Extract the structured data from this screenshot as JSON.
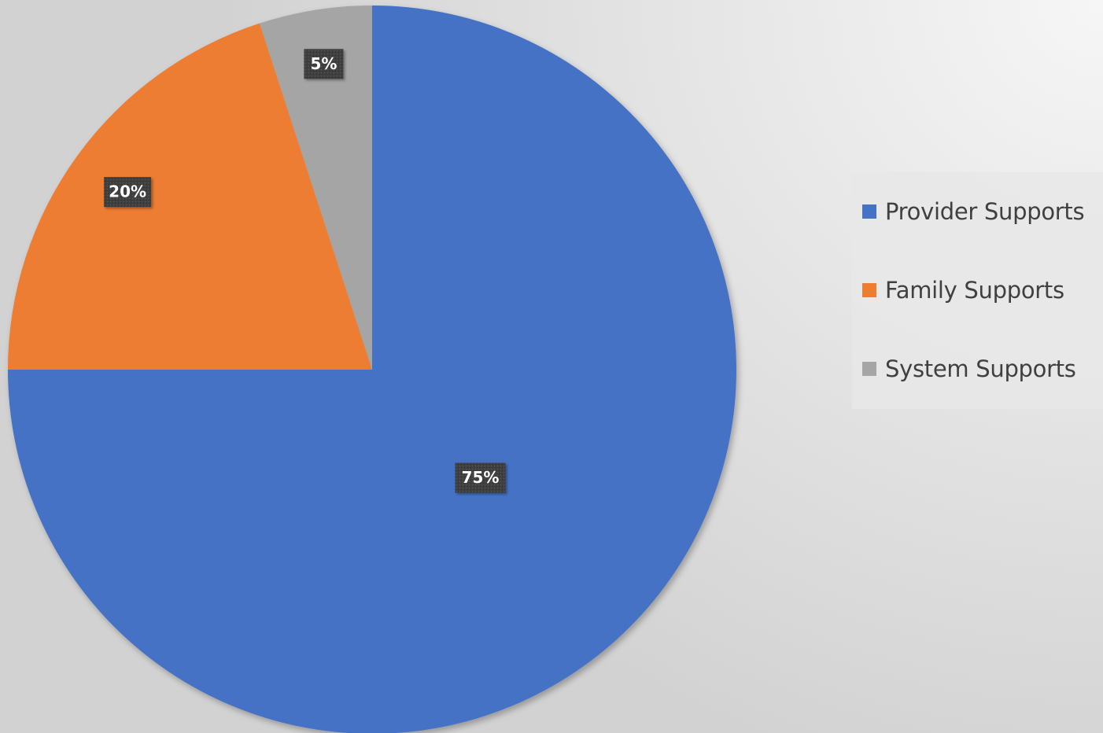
{
  "chart_data": {
    "type": "pie",
    "categories": [
      "Provider Supports",
      "Family Supports",
      "System Supports"
    ],
    "values": [
      75,
      20,
      5
    ],
    "data_labels": [
      "75%",
      "20%",
      "5%"
    ],
    "colors": [
      "#4472c4",
      "#ed7d31",
      "#a5a5a5"
    ],
    "start_angle": "12 o'clock",
    "direction": "clockwise",
    "legend_position": "right",
    "data_label_style": {
      "background": "#404040",
      "text_color": "#ffffff"
    }
  },
  "legend": {
    "items": [
      {
        "label": "Provider Supports",
        "color": "#4472c4"
      },
      {
        "label": "Family Supports",
        "color": "#ed7d31"
      },
      {
        "label": "System Supports",
        "color": "#a5a5a5"
      }
    ]
  }
}
